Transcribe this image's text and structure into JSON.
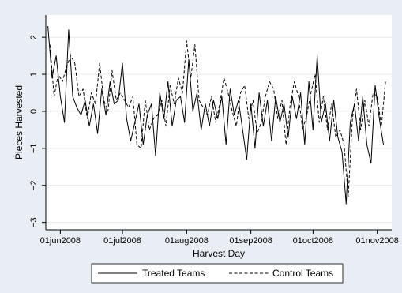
{
  "chart_data": {
    "type": "line",
    "xlabel": "Harvest Day",
    "ylabel": "Pieces Harvested",
    "x_range": [
      "2008-05-25",
      "2008-11-08"
    ],
    "ylim": [
      -3.2,
      2.6
    ],
    "y_ticks": [
      {
        "value": -3,
        "label": "−3"
      },
      {
        "value": -2,
        "label": "−2"
      },
      {
        "value": -1,
        "label": "−1"
      },
      {
        "value": 0,
        "label": "0"
      },
      {
        "value": 1,
        "label": "1"
      },
      {
        "value": 2,
        "label": "2"
      }
    ],
    "x_ticks": [
      {
        "date": "2008-06-01",
        "label": "01jun2008"
      },
      {
        "date": "2008-07-01",
        "label": "01jul2008"
      },
      {
        "date": "2008-08-01",
        "label": "01aug2008"
      },
      {
        "date": "2008-09-01",
        "label": "01sep2008"
      },
      {
        "date": "2008-10-01",
        "label": "01oct2008"
      },
      {
        "date": "2008-11-01",
        "label": "01nov2008"
      }
    ],
    "grid": "horizontal",
    "legend_position": "bottom",
    "colors": {
      "background": "#e8eef3",
      "plot": "#ffffff",
      "line": "#000000"
    },
    "series": [
      {
        "name": "Treated Teams",
        "style": "solid",
        "x": [
          "2008-05-26",
          "2008-05-28",
          "2008-05-30",
          "2008-06-01",
          "2008-06-03",
          "2008-06-05",
          "2008-06-07",
          "2008-06-09",
          "2008-06-11",
          "2008-06-13",
          "2008-06-15",
          "2008-06-17",
          "2008-06-19",
          "2008-06-21",
          "2008-06-23",
          "2008-06-25",
          "2008-06-27",
          "2008-06-29",
          "2008-07-01",
          "2008-07-03",
          "2008-07-05",
          "2008-07-07",
          "2008-07-09",
          "2008-07-11",
          "2008-07-13",
          "2008-07-15",
          "2008-07-17",
          "2008-07-19",
          "2008-07-21",
          "2008-07-23",
          "2008-07-25",
          "2008-07-27",
          "2008-07-29",
          "2008-07-31",
          "2008-08-02",
          "2008-08-04",
          "2008-08-06",
          "2008-08-08",
          "2008-08-10",
          "2008-08-12",
          "2008-08-14",
          "2008-08-16",
          "2008-08-18",
          "2008-08-20",
          "2008-08-22",
          "2008-08-24",
          "2008-08-26",
          "2008-08-28",
          "2008-08-30",
          "2008-09-01",
          "2008-09-03",
          "2008-09-05",
          "2008-09-07",
          "2008-09-09",
          "2008-09-11",
          "2008-09-13",
          "2008-09-15",
          "2008-09-17",
          "2008-09-19",
          "2008-09-21",
          "2008-09-23",
          "2008-09-25",
          "2008-09-27",
          "2008-09-29",
          "2008-10-01",
          "2008-10-03",
          "2008-10-05",
          "2008-10-07",
          "2008-10-09",
          "2008-10-11",
          "2008-10-13",
          "2008-10-15",
          "2008-10-17",
          "2008-10-19",
          "2008-10-21",
          "2008-10-23",
          "2008-10-25",
          "2008-10-27",
          "2008-10-29",
          "2008-10-31",
          "2008-11-02",
          "2008-11-04"
        ],
        "values": [
          2.3,
          0.9,
          1.5,
          0.4,
          -0.3,
          2.2,
          0.4,
          0.1,
          -0.1,
          0.3,
          -0.4,
          0.2,
          -0.6,
          0.6,
          -0.1,
          0.8,
          0.2,
          0.3,
          1.3,
          -0.2,
          -0.8,
          -0.3,
          0.2,
          -0.9,
          -0.1,
          0.2,
          -1.2,
          0.5,
          -0.2,
          0.8,
          -0.4,
          0.3,
          0.4,
          -0.3,
          1.4,
          0.0,
          0.5,
          -0.5,
          0.2,
          -0.4,
          0.3,
          -0.2,
          0.4,
          -0.9,
          0.6,
          -0.1,
          0.3,
          -0.5,
          -1.3,
          0.2,
          -1.0,
          0.5,
          -0.4,
          0.3,
          -0.8,
          0.4,
          -0.3,
          0.2,
          -0.7,
          0.4,
          -0.2,
          0.5,
          -0.9,
          0.8,
          -0.5,
          1.5,
          -0.3,
          0.2,
          -0.8,
          0.3,
          -0.7,
          -1.1,
          -2.5,
          -0.3,
          0.2,
          -0.8,
          0.4,
          -0.9,
          -1.4,
          0.7,
          -0.2,
          -0.9
        ]
      },
      {
        "name": "Control Teams",
        "style": "dashed",
        "x": [
          "2008-05-27",
          "2008-05-29",
          "2008-05-31",
          "2008-06-02",
          "2008-06-04",
          "2008-06-06",
          "2008-06-08",
          "2008-06-10",
          "2008-06-12",
          "2008-06-14",
          "2008-06-16",
          "2008-06-18",
          "2008-06-20",
          "2008-06-22",
          "2008-06-24",
          "2008-06-26",
          "2008-06-28",
          "2008-06-30",
          "2008-07-02",
          "2008-07-04",
          "2008-07-06",
          "2008-07-08",
          "2008-07-10",
          "2008-07-12",
          "2008-07-14",
          "2008-07-16",
          "2008-07-18",
          "2008-07-20",
          "2008-07-22",
          "2008-07-24",
          "2008-07-26",
          "2008-07-28",
          "2008-07-30",
          "2008-08-01",
          "2008-08-03",
          "2008-08-05",
          "2008-08-07",
          "2008-08-09",
          "2008-08-11",
          "2008-08-13",
          "2008-08-15",
          "2008-08-17",
          "2008-08-19",
          "2008-08-21",
          "2008-08-23",
          "2008-08-25",
          "2008-08-27",
          "2008-08-29",
          "2008-08-31",
          "2008-09-02",
          "2008-09-04",
          "2008-09-06",
          "2008-09-08",
          "2008-09-10",
          "2008-09-12",
          "2008-09-14",
          "2008-09-16",
          "2008-09-18",
          "2008-09-20",
          "2008-09-22",
          "2008-09-24",
          "2008-09-26",
          "2008-09-28",
          "2008-09-30",
          "2008-10-02",
          "2008-10-04",
          "2008-10-06",
          "2008-10-08",
          "2008-10-10",
          "2008-10-12",
          "2008-10-14",
          "2008-10-16",
          "2008-10-18",
          "2008-10-20",
          "2008-10-22",
          "2008-10-24",
          "2008-10-26",
          "2008-10-28",
          "2008-10-30",
          "2008-11-01",
          "2008-11-03",
          "2008-11-05"
        ],
        "values": [
          1.8,
          0.4,
          1.0,
          0.8,
          1.2,
          1.5,
          1.3,
          0.4,
          0.6,
          -0.2,
          0.5,
          0.2,
          1.3,
          0.3,
          0.0,
          1.1,
          0.3,
          0.5,
          0.3,
          0.1,
          0.4,
          -0.9,
          -1.0,
          0.3,
          -0.5,
          -0.2,
          -0.1,
          0.3,
          -0.4,
          0.7,
          0.2,
          0.9,
          0.5,
          1.9,
          0.9,
          1.8,
          0.3,
          0.1,
          -0.1,
          0.4,
          -0.3,
          0.2,
          0.9,
          0.5,
          0.0,
          -0.4,
          0.5,
          0.7,
          -0.2,
          0.3,
          -0.6,
          -0.3,
          0.4,
          0.8,
          0.6,
          -0.2,
          0.3,
          -0.9,
          0.2,
          0.8,
          0.4,
          -0.5,
          -0.1,
          0.5,
          1.0,
          -0.3,
          0.4,
          -0.5,
          0.2,
          -0.7,
          -0.5,
          -0.9,
          -2.3,
          -0.2,
          0.6,
          -0.5,
          0.3,
          -0.4,
          0.5,
          0.4,
          -0.4,
          0.8
        ]
      }
    ]
  }
}
